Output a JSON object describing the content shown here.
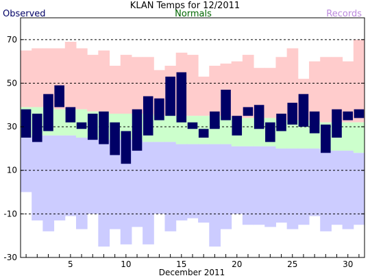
{
  "chart_data": {
    "type": "bar",
    "title": "KLAN Temps for 12/2011",
    "xlabel": "December 2011",
    "ylabel": "",
    "ylim": [
      -30,
      80
    ],
    "yticks": [
      -30,
      -10,
      10,
      30,
      50,
      70
    ],
    "xticks": [
      5,
      10,
      15,
      20,
      25,
      30
    ],
    "grid": "horizontal-dashed",
    "legend": [
      {
        "name": "Observed",
        "color": "#000066",
        "placement": "top-left"
      },
      {
        "name": "Normals",
        "color": "#006600",
        "placement": "top-center"
      },
      {
        "name": "Records",
        "color": "#bb88dd",
        "placement": "top-right"
      }
    ],
    "colors": {
      "record_high": "#ffcccc",
      "normal": "#ccffcc",
      "record_low": "#ccccff",
      "observed": "#000066"
    },
    "days": [
      1,
      2,
      3,
      4,
      5,
      6,
      7,
      8,
      9,
      10,
      11,
      12,
      13,
      14,
      15,
      16,
      17,
      18,
      19,
      20,
      21,
      22,
      23,
      24,
      25,
      26,
      27,
      28,
      29,
      30,
      31
    ],
    "series": [
      {
        "name": "Records",
        "component": "record_high",
        "values": [
          65,
          66,
          66,
          66,
          69,
          66,
          63,
          65,
          58,
          63,
          62,
          62,
          56,
          58,
          64,
          63,
          53,
          58,
          59,
          60,
          63,
          57,
          57,
          62,
          66,
          52,
          60,
          62,
          62,
          60,
          70
        ]
      },
      {
        "name": "Normals",
        "component": "normal_high",
        "values": [
          39,
          39,
          39,
          38,
          38,
          38,
          37,
          37,
          36,
          36,
          36,
          36,
          35,
          35,
          35,
          35,
          35,
          35,
          35,
          34,
          34,
          34,
          34,
          33,
          33,
          33,
          33,
          32,
          32,
          32,
          32
        ]
      },
      {
        "name": "Normals",
        "component": "normal_low",
        "values": [
          25,
          26,
          26,
          26,
          26,
          25,
          25,
          24,
          24,
          24,
          24,
          23,
          23,
          23,
          22,
          22,
          22,
          22,
          22,
          21,
          21,
          21,
          21,
          20,
          20,
          20,
          20,
          19,
          19,
          19,
          18
        ]
      },
      {
        "name": "Records",
        "component": "record_low",
        "values": [
          0,
          -13,
          -18,
          -13,
          -11,
          -17,
          -10,
          -25,
          -17,
          -24,
          -16,
          -24,
          -10,
          -18,
          -13,
          -12,
          -14,
          -25,
          -17,
          -10,
          -15,
          -15,
          -16,
          -14,
          -17,
          -15,
          -11,
          -18,
          -15,
          -17,
          -15
        ]
      },
      {
        "name": "Observed",
        "component": "observed_high",
        "values": [
          38,
          36,
          45,
          49,
          39,
          32,
          36,
          37,
          32,
          28,
          38,
          44,
          43,
          53,
          55,
          32,
          29,
          37,
          47,
          35,
          39,
          40,
          32,
          36,
          41,
          45,
          37,
          31,
          38,
          37,
          38
        ]
      },
      {
        "name": "Observed",
        "component": "observed_low",
        "values": [
          25,
          23,
          28,
          39,
          32,
          29,
          24,
          22,
          17,
          13,
          19,
          26,
          33,
          35,
          32,
          29,
          25,
          29,
          33,
          26,
          35,
          29,
          23,
          28,
          31,
          30,
          27,
          18,
          25,
          33,
          34
        ]
      }
    ]
  }
}
